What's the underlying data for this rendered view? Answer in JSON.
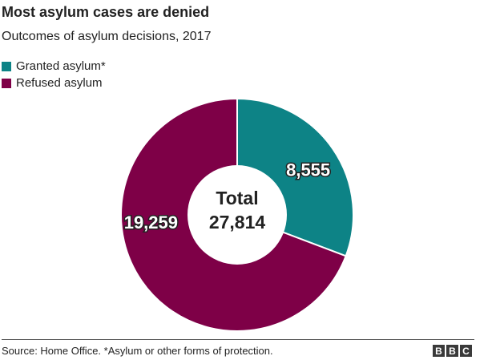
{
  "header": {
    "title": "Most asylum cases are denied",
    "subtitle": "Outcomes of asylum decisions, 2017"
  },
  "footer": {
    "source": "Source: Home Office. *Asylum or other forms of protection.",
    "logo_letters": [
      "B",
      "B",
      "C"
    ]
  },
  "chart_data": {
    "type": "pie",
    "style": "donut",
    "categories": [
      "Granted asylum*",
      "Refused asylum"
    ],
    "values": [
      8555,
      19259
    ],
    "value_labels": [
      "8,555",
      "19,259"
    ],
    "colors": [
      "#0d8386",
      "#7e0047"
    ],
    "center_label": {
      "line1": "Total",
      "line2": "27,814"
    },
    "legend_position": "top-left"
  }
}
